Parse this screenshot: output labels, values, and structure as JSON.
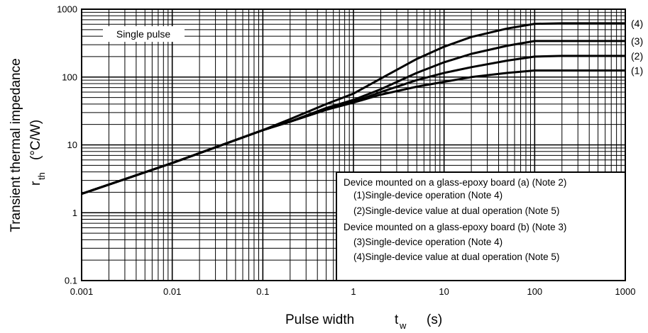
{
  "chart_data": {
    "type": "line",
    "xscale": "log",
    "yscale": "log",
    "xlim": [
      0.001,
      1000
    ],
    "ylim": [
      0.1,
      1000
    ],
    "grid": true,
    "x_tick_labels": [
      "0.001",
      "0.01",
      "0.1",
      "1",
      "10",
      "100",
      "1000"
    ],
    "y_tick_labels": [
      "0.1",
      "1",
      "10",
      "100",
      "1000"
    ],
    "xlabel": {
      "main": "Pulse width",
      "symbol": "t",
      "subscript": "w",
      "unit": "(s)"
    },
    "ylabel": {
      "line1": "Transient thermal impedance",
      "symbol": "r",
      "subscript": "th",
      "unit": "(°C/W)"
    },
    "annotation": "Single pulse",
    "legend_position": "bottom-right",
    "legend_lines": [
      "Device mounted on a glass-epoxy board (a) (Note 2)",
      "(1)Single-device operation (Note 4)",
      "(2)Single-device value at dual operation (Note 5)",
      "Device mounted on a glass-epoxy board (b) (Note 3)",
      "(3)Single-device operation (Note 4)",
      "(4)Single-device value at dual operation (Note 5)"
    ],
    "series": [
      {
        "name": "(1)",
        "x": [
          0.001,
          0.01,
          0.1,
          0.2,
          0.5,
          1,
          2,
          5,
          10,
          20,
          50,
          100,
          200,
          500,
          1000
        ],
        "y": [
          1.9,
          5.4,
          16.5,
          22,
          33,
          42,
          55,
          72,
          85,
          100,
          115,
          125,
          125,
          125,
          125
        ]
      },
      {
        "name": "(2)",
        "x": [
          0.001,
          0.01,
          0.1,
          0.2,
          0.5,
          1,
          2,
          5,
          10,
          20,
          50,
          100,
          200,
          500,
          1000
        ],
        "y": [
          1.9,
          5.4,
          16.5,
          22,
          33,
          43,
          60,
          90,
          115,
          140,
          175,
          200,
          205,
          205,
          205
        ]
      },
      {
        "name": "(3)",
        "x": [
          0.001,
          0.01,
          0.1,
          0.2,
          0.5,
          1,
          2,
          5,
          10,
          20,
          50,
          100,
          200,
          500,
          1000
        ],
        "y": [
          1.9,
          5.4,
          16.5,
          22,
          35,
          46,
          66,
          115,
          165,
          220,
          290,
          340,
          340,
          340,
          340
        ]
      },
      {
        "name": "(4)",
        "x": [
          0.001,
          0.01,
          0.1,
          0.2,
          0.5,
          1,
          2,
          5,
          10,
          20,
          50,
          100,
          200,
          500,
          1000
        ],
        "y": [
          1.9,
          5.4,
          16.5,
          24,
          40,
          57,
          95,
          185,
          280,
          390,
          520,
          610,
          620,
          620,
          620
        ]
      }
    ]
  }
}
